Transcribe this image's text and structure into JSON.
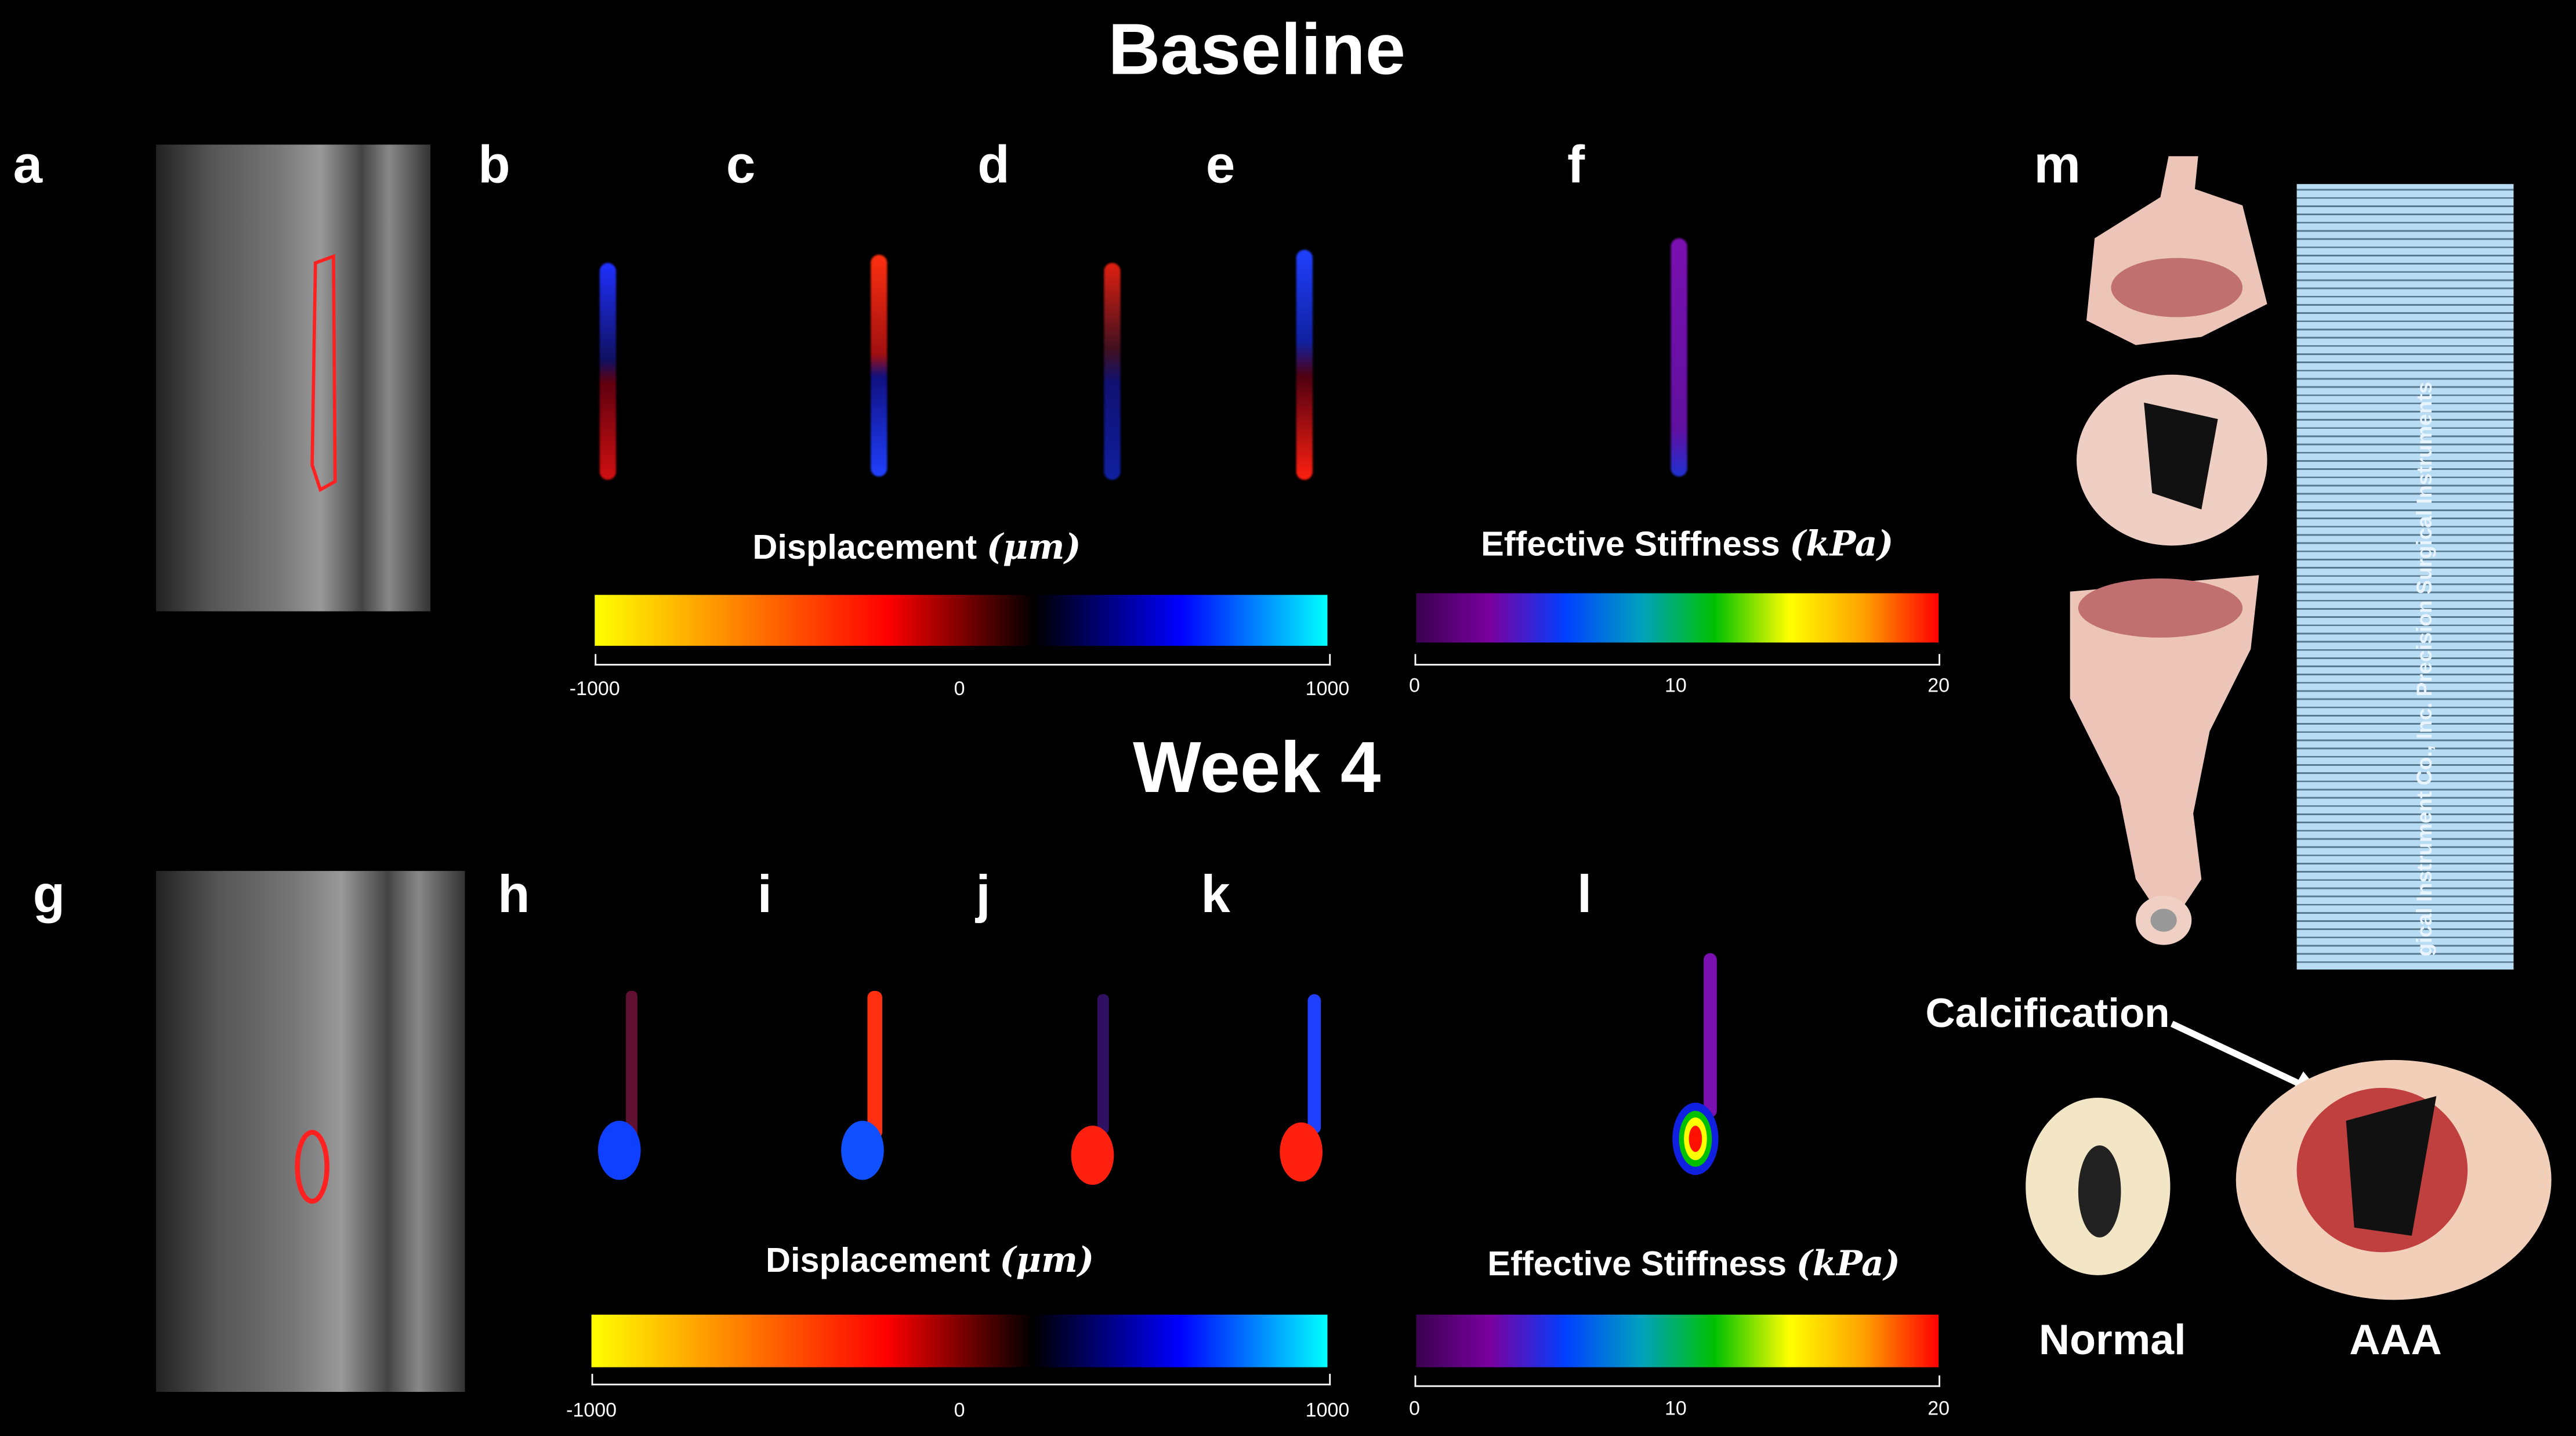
{
  "titles": {
    "baseline": "Baseline",
    "week4": "Week 4"
  },
  "letters": {
    "a": "a",
    "b": "b",
    "c": "c",
    "d": "d",
    "e": "e",
    "f": "f",
    "m": "m",
    "g": "g",
    "h": "h",
    "i": "i",
    "j": "j",
    "k": "k",
    "l": "l"
  },
  "colorbars": {
    "displacement": {
      "label": "Displacement",
      "unit": "(μm)",
      "ticks": [
        "-1000",
        "0",
        "1000"
      ],
      "colors": [
        "#ffff00",
        "#ff8000",
        "#ff0000",
        "#000000",
        "#0000ff",
        "#00ffff"
      ]
    },
    "stiffness": {
      "label": "Effective Stiffness",
      "unit": "(kPa)",
      "ticks": [
        "0",
        "10",
        "20"
      ],
      "colors": [
        "#3a0050",
        "#7a00a0",
        "#0040ff",
        "#00a0c0",
        "#00c000",
        "#ffff00",
        "#ffa000",
        "#ff0000"
      ]
    }
  },
  "specimen": {
    "calcification": "Calcification",
    "normal": "Normal",
    "aaa": "AAA",
    "ruler_text": "gical Instrument Co., Inc.   Precision Surgical Instruments"
  }
}
